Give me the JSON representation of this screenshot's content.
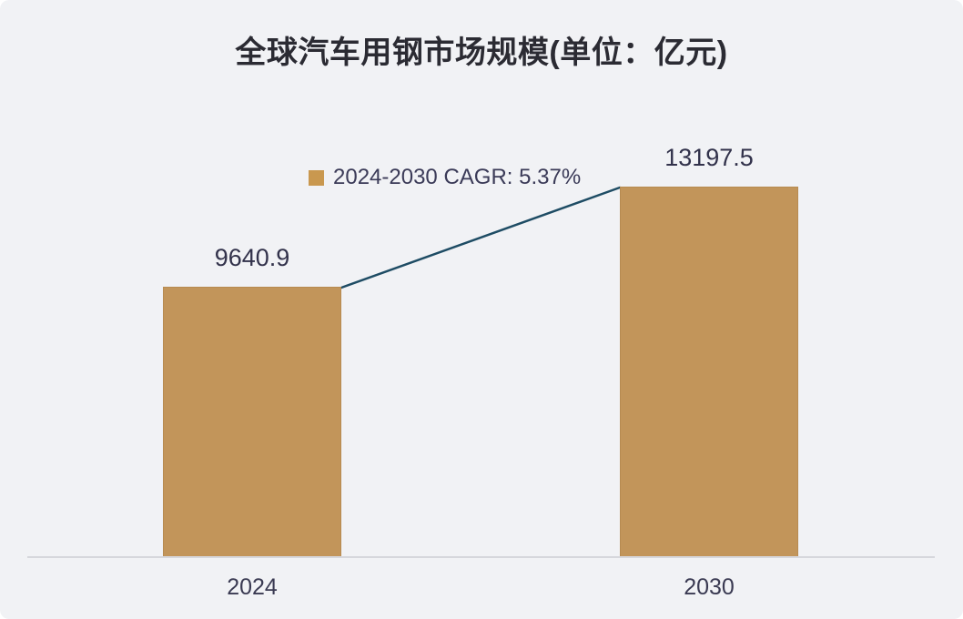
{
  "chart_data": {
    "type": "bar",
    "title": "全球汽车用钢市场规模(单位：亿元)",
    "categories": [
      "2024",
      "2030"
    ],
    "values": [
      9640.9,
      13197.5
    ],
    "value_labels": [
      "9640.9",
      "13197.5"
    ],
    "legend": {
      "label": "2024-2030 CAGR: 5.37%",
      "position": "top-center",
      "marker_color": "#C9984F"
    },
    "annotation_line": {
      "type": "growth-connector",
      "from_category": "2024",
      "to_category": "2030",
      "color": "#1E4C64"
    },
    "bar_color": "#C2955A",
    "background_color": "#F1F2F5",
    "title_color": "#2B2B33",
    "value_label_color": "#32324B",
    "tick_label_color": "#3A3A52",
    "axis_line_color": "#D6D7DC",
    "xlabel": "",
    "ylabel": "",
    "ylim": [
      0,
      14000
    ],
    "grid": false
  }
}
